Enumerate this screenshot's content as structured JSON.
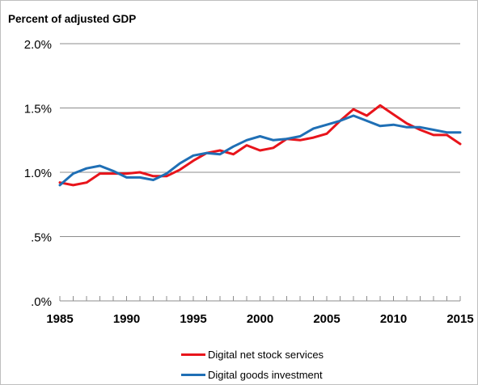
{
  "chart_data": {
    "type": "line",
    "title": "Percent of adjusted GDP",
    "xlabel": "",
    "ylabel": "",
    "xlim": [
      1985,
      2015
    ],
    "ylim": [
      0,
      2.0
    ],
    "y_ticks": [
      {
        "value": 2.0,
        "label": "2.0%"
      },
      {
        "value": 1.5,
        "label": "1.5%"
      },
      {
        "value": 1.0,
        "label": "1.0%"
      },
      {
        "value": 0.5,
        "label": ".5%"
      },
      {
        "value": 0.0,
        "label": ".0%"
      }
    ],
    "x_ticks": [
      {
        "value": 1985,
        "label": "1985"
      },
      {
        "value": 1990,
        "label": "1990"
      },
      {
        "value": 1995,
        "label": "1995"
      },
      {
        "value": 2000,
        "label": "2000"
      },
      {
        "value": 2005,
        "label": "2005"
      },
      {
        "value": 2010,
        "label": "2010"
      },
      {
        "value": 2015,
        "label": "2015"
      }
    ],
    "grid": "horizontal",
    "legend_position": "bottom",
    "x": [
      1985,
      1986,
      1987,
      1988,
      1989,
      1990,
      1991,
      1992,
      1993,
      1994,
      1995,
      1996,
      1997,
      1998,
      1999,
      2000,
      2001,
      2002,
      2003,
      2004,
      2005,
      2006,
      2007,
      2008,
      2009,
      2010,
      2011,
      2012,
      2013,
      2014,
      2015
    ],
    "series": [
      {
        "name": "Digital net stock services",
        "color": "#e8141b",
        "values": [
          0.92,
          0.9,
          0.92,
          0.99,
          0.99,
          0.99,
          1.0,
          0.97,
          0.97,
          1.02,
          1.09,
          1.15,
          1.17,
          1.14,
          1.21,
          1.17,
          1.19,
          1.26,
          1.25,
          1.27,
          1.3,
          1.4,
          1.49,
          1.44,
          1.52,
          1.45,
          1.38,
          1.33,
          1.29,
          1.29,
          1.22
        ]
      },
      {
        "name": "Digital goods investment",
        "color": "#1f6fb5",
        "values": [
          0.9,
          0.99,
          1.03,
          1.05,
          1.01,
          0.96,
          0.96,
          0.94,
          0.99,
          1.07,
          1.13,
          1.15,
          1.14,
          1.2,
          1.25,
          1.28,
          1.25,
          1.26,
          1.28,
          1.34,
          1.37,
          1.4,
          1.44,
          1.4,
          1.36,
          1.37,
          1.35,
          1.35,
          1.33,
          1.31,
          1.31
        ]
      }
    ]
  }
}
